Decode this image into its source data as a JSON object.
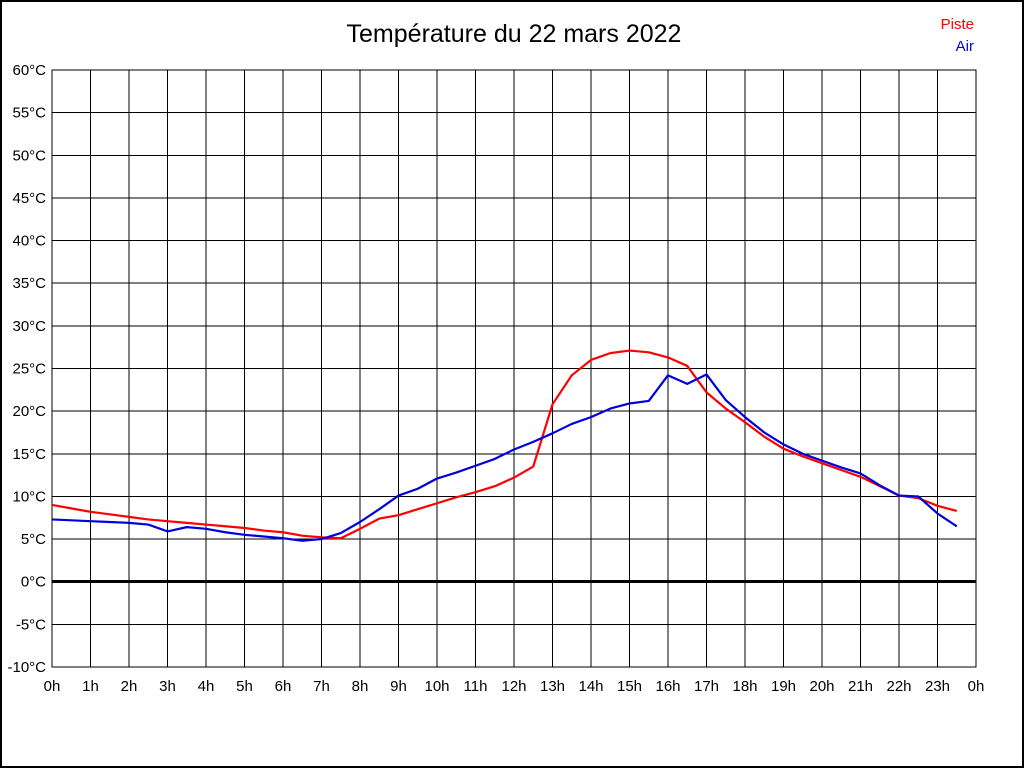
{
  "title": "Température du 22 mars 2022",
  "chart_data": {
    "type": "line",
    "title": "Température du 22 mars 2022",
    "xlabel": "",
    "ylabel": "",
    "x_unit": "hours",
    "y_unit": "°C",
    "xlim": [
      0,
      24
    ],
    "ylim": [
      -10,
      60
    ],
    "grid": true,
    "zero_line_emphasized": true,
    "legend_position": "top-right",
    "x": [
      0,
      0.5,
      1,
      1.5,
      2,
      2.5,
      3,
      3.5,
      4,
      4.5,
      5,
      5.5,
      6,
      6.5,
      7,
      7.5,
      8,
      8.5,
      9,
      9.5,
      10,
      10.5,
      11,
      11.5,
      12,
      12.5,
      13,
      13.5,
      14,
      14.5,
      15,
      15.5,
      16,
      16.5,
      17,
      17.5,
      18,
      18.5,
      19,
      19.5,
      20,
      20.5,
      21,
      21.5,
      22,
      22.5,
      23,
      23.5
    ],
    "series": [
      {
        "name": "Piste",
        "color": "#ff0000",
        "values": [
          9.0,
          8.6,
          8.2,
          7.9,
          7.6,
          7.3,
          7.1,
          6.9,
          6.7,
          6.5,
          6.3,
          6.0,
          5.8,
          5.4,
          5.2,
          5.1,
          6.2,
          7.4,
          7.8,
          8.5,
          9.2,
          9.9,
          10.5,
          11.2,
          12.2,
          13.5,
          20.8,
          24.2,
          26.0,
          26.8,
          27.1,
          26.9,
          26.3,
          25.3,
          22.2,
          20.3,
          18.7,
          17.0,
          15.6,
          14.7,
          13.9,
          13.1,
          12.3,
          11.2,
          10.1,
          9.8,
          8.9,
          8.3
        ]
      },
      {
        "name": "Air",
        "color": "#0000dd",
        "values": [
          7.3,
          7.2,
          7.1,
          7.0,
          6.9,
          6.7,
          5.9,
          6.4,
          6.2,
          5.8,
          5.5,
          5.3,
          5.1,
          4.8,
          5.0,
          5.7,
          7.0,
          8.5,
          10.1,
          10.9,
          12.1,
          12.8,
          13.6,
          14.4,
          15.5,
          16.4,
          17.4,
          18.5,
          19.3,
          20.3,
          20.9,
          21.2,
          24.2,
          23.2,
          24.3,
          21.3,
          19.3,
          17.5,
          16.1,
          15.0,
          14.2,
          13.4,
          12.7,
          11.3,
          10.1,
          10.0,
          8.0,
          6.5
        ]
      }
    ],
    "x_tick_labels": [
      "0h",
      "1h",
      "2h",
      "3h",
      "4h",
      "5h",
      "6h",
      "7h",
      "8h",
      "9h",
      "10h",
      "11h",
      "12h",
      "13h",
      "14h",
      "15h",
      "16h",
      "17h",
      "18h",
      "19h",
      "20h",
      "21h",
      "22h",
      "23h",
      "0h"
    ],
    "y_ticks": [
      {
        "value": 60,
        "label": "60°C"
      },
      {
        "value": 55,
        "label": "55°C"
      },
      {
        "value": 50,
        "label": "50°C"
      },
      {
        "value": 45,
        "label": "45°C"
      },
      {
        "value": 40,
        "label": "40°C"
      },
      {
        "value": 35,
        "label": "35°C"
      },
      {
        "value": 30,
        "label": "30°C"
      },
      {
        "value": 25,
        "label": "25°C"
      },
      {
        "value": 20,
        "label": "20°C"
      },
      {
        "value": 15,
        "label": "15°C"
      },
      {
        "value": 10,
        "label": "10°C"
      },
      {
        "value": 5,
        "label": "5°C"
      },
      {
        "value": 0,
        "label": "0°C"
      },
      {
        "value": -5,
        "label": "-5°C"
      },
      {
        "value": -10,
        "label": "-10°C"
      }
    ]
  },
  "colors": {
    "grid": "#000000",
    "frame": "#000000",
    "zero_line": "#000000",
    "background": "#ffffff",
    "title_text": "#000000"
  }
}
